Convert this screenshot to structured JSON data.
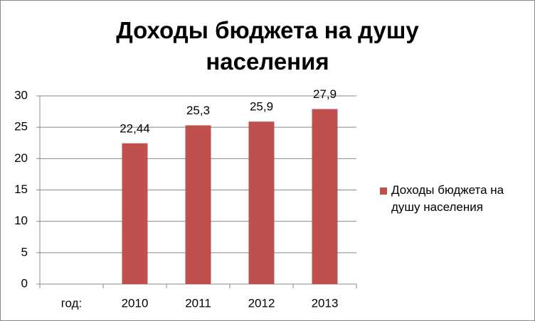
{
  "chart_data": {
    "type": "bar",
    "title": "Доходы бюджета на душу населения",
    "categories": [
      "год:",
      "2010",
      "2011",
      "2012",
      "2013"
    ],
    "series": [
      {
        "name": "Доходы бюджета на душу населения",
        "color": "#c0504d",
        "values": [
          null,
          22.44,
          25.3,
          25.9,
          27.9
        ],
        "value_labels": [
          null,
          "22,44",
          "25,3",
          "25,9",
          "27,9"
        ]
      }
    ],
    "ylim": [
      0,
      30
    ],
    "yticks": [
      0,
      5,
      10,
      15,
      20,
      25,
      30
    ],
    "grid": true,
    "legend": "right"
  }
}
